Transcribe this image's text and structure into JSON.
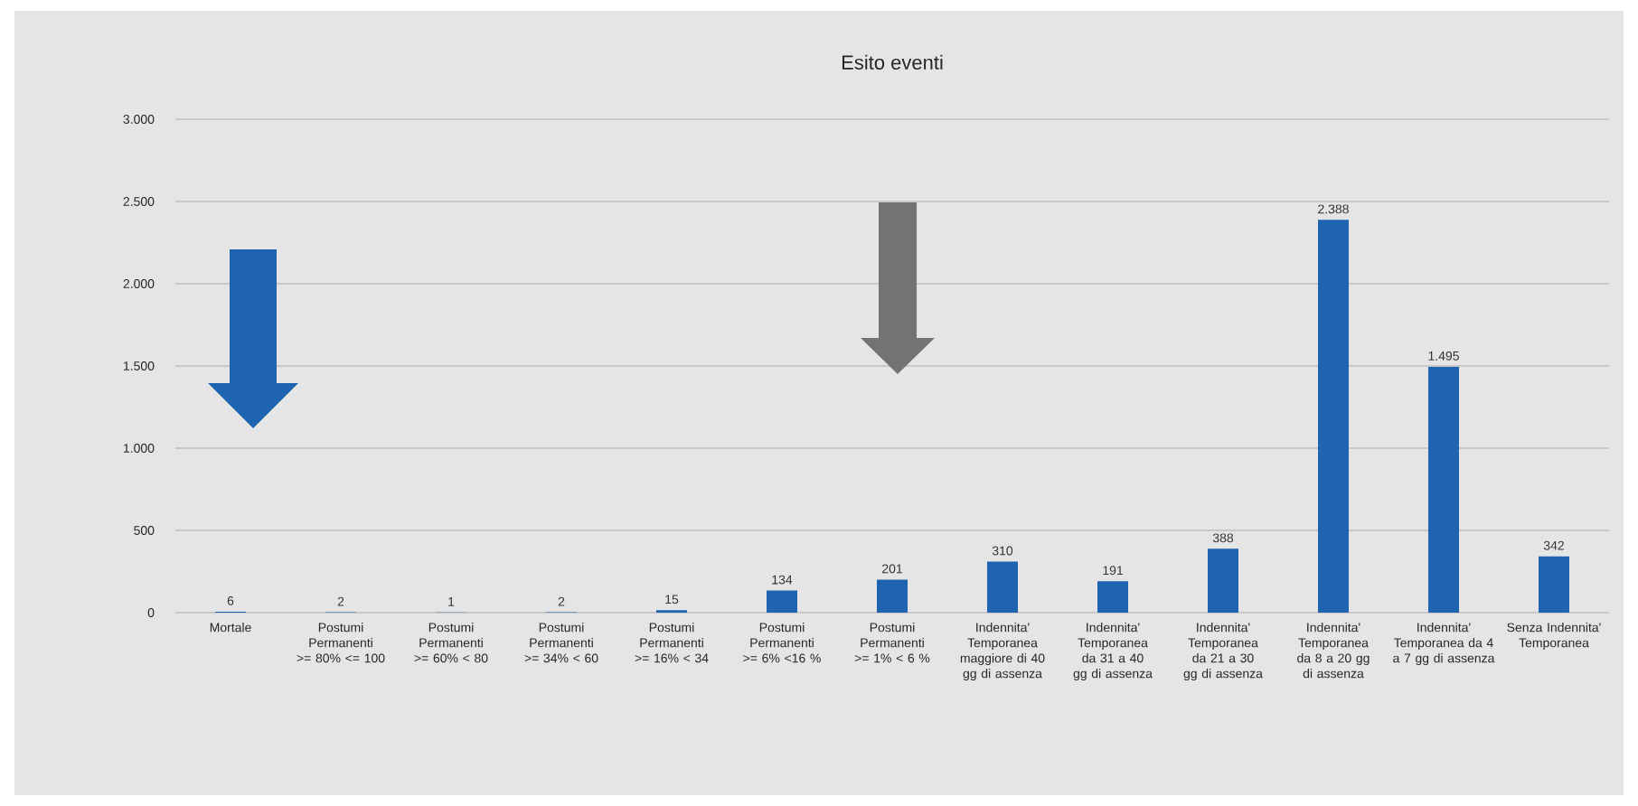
{
  "chart_data": {
    "type": "bar",
    "title": "Esito eventi",
    "categories": [
      "Mortale",
      "Postumi Permanenti >= 80% <= 100",
      "Postumi Permanenti >= 60% < 80",
      "Postumi Permanenti >= 34% < 60",
      "Postumi Permanenti >= 16% < 34",
      "Postumi Permanenti >= 6% <16 %",
      "Postumi Permanenti >= 1% < 6 %",
      "Indennita' Temporanea maggiore di 40 gg di assenza",
      "Indennita' Temporanea da 31 a 40 gg di assenza",
      "Indennita' Temporanea da 21 a 30 gg di assenza",
      "Indennita' Temporanea da 8 a 20 gg di assenza",
      "Indennita' Temporanea da 4 a 7 gg di assenza",
      "Senza Indennita' Temporanea"
    ],
    "values": [
      6,
      2,
      1,
      2,
      15,
      134,
      201,
      310,
      191,
      388,
      2388,
      1495,
      342
    ],
    "value_labels": [
      "6",
      "2",
      "1",
      "2",
      "15",
      "134",
      "201",
      "310",
      "191",
      "388",
      "2.388",
      "1.495",
      "342"
    ],
    "color": "#1e64b0",
    "ylim": [
      0,
      3000
    ],
    "yticks": [
      0,
      {
        "value": 500,
        "label": "500"
      },
      {
        "value": 1000,
        "label": "1.000"
      },
      {
        "value": 1500,
        "label": "1.500"
      },
      {
        "value": 2000,
        "label": "2.000"
      },
      {
        "value": 2500,
        "label": "2.500"
      },
      {
        "value": 3000,
        "label": "3.000"
      }
    ],
    "grid": "y"
  }
}
